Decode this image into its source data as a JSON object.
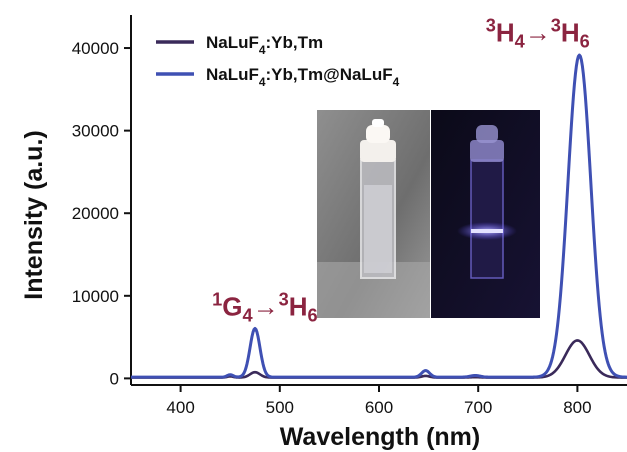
{
  "colors": {
    "series_core": "#3a2a5a",
    "series_coreshell": "#3f50b3",
    "annotation": "#8b2440",
    "axis": "#111111"
  },
  "chart_data": {
    "type": "line",
    "xlabel": "Wavelength (nm)",
    "ylabel": "Intensity (a.u.)",
    "xlim": [
      350,
      850
    ],
    "ylim": [
      -800,
      44000
    ],
    "xticks": [
      400,
      500,
      600,
      700,
      800
    ],
    "yticks": [
      0,
      10000,
      20000,
      30000,
      40000
    ],
    "legend_position": "top-left",
    "series": [
      {
        "name_parts": [
          {
            "t": "NaLuF",
            "s": "normal"
          },
          {
            "t": "4",
            "s": "sub"
          },
          {
            "t": ":Yb,Tm",
            "s": "normal"
          }
        ],
        "color_key": "series_core",
        "peaks": [
          [
            450,
            150,
            3
          ],
          [
            475,
            650,
            5
          ],
          [
            647,
            200,
            4
          ],
          [
            697,
            50,
            5
          ],
          [
            800,
            4500,
            12
          ]
        ],
        "baseline": 100
      },
      {
        "name_parts": [
          {
            "t": "NaLuF",
            "s": "normal"
          },
          {
            "t": "4",
            "s": "sub"
          },
          {
            "t": ":Yb,Tm@NaLuF",
            "s": "normal"
          },
          {
            "t": "4",
            "s": "sub"
          }
        ],
        "color_key": "series_coreshell",
        "peaks": [
          [
            450,
            300,
            3
          ],
          [
            475,
            5900,
            5
          ],
          [
            647,
            800,
            4
          ],
          [
            697,
            200,
            5
          ],
          [
            802,
            39000,
            11.5
          ]
        ],
        "baseline": 150
      }
    ],
    "annotations": [
      {
        "parts": [
          {
            "t": "1",
            "s": "sup"
          },
          {
            "t": "G",
            "s": "normal"
          },
          {
            "t": "4",
            "s": "sub"
          },
          {
            "t": "→",
            "s": "normal"
          },
          {
            "t": "3",
            "s": "sup"
          },
          {
            "t": "H",
            "s": "normal"
          },
          {
            "t": "6",
            "s": "sub"
          }
        ],
        "x": 485,
        "y": 7600
      },
      {
        "parts": [
          {
            "t": "3",
            "s": "sup"
          },
          {
            "t": "H",
            "s": "normal"
          },
          {
            "t": "4",
            "s": "sub"
          },
          {
            "t": "→",
            "s": "normal"
          },
          {
            "t": "3",
            "s": "sup"
          },
          {
            "t": "H",
            "s": "normal"
          },
          {
            "t": "6",
            "s": "sub"
          }
        ],
        "x": 760,
        "y": 40800
      }
    ],
    "inset": {
      "description": "photographs of cuvettes under ambient light and under excitation"
    }
  }
}
